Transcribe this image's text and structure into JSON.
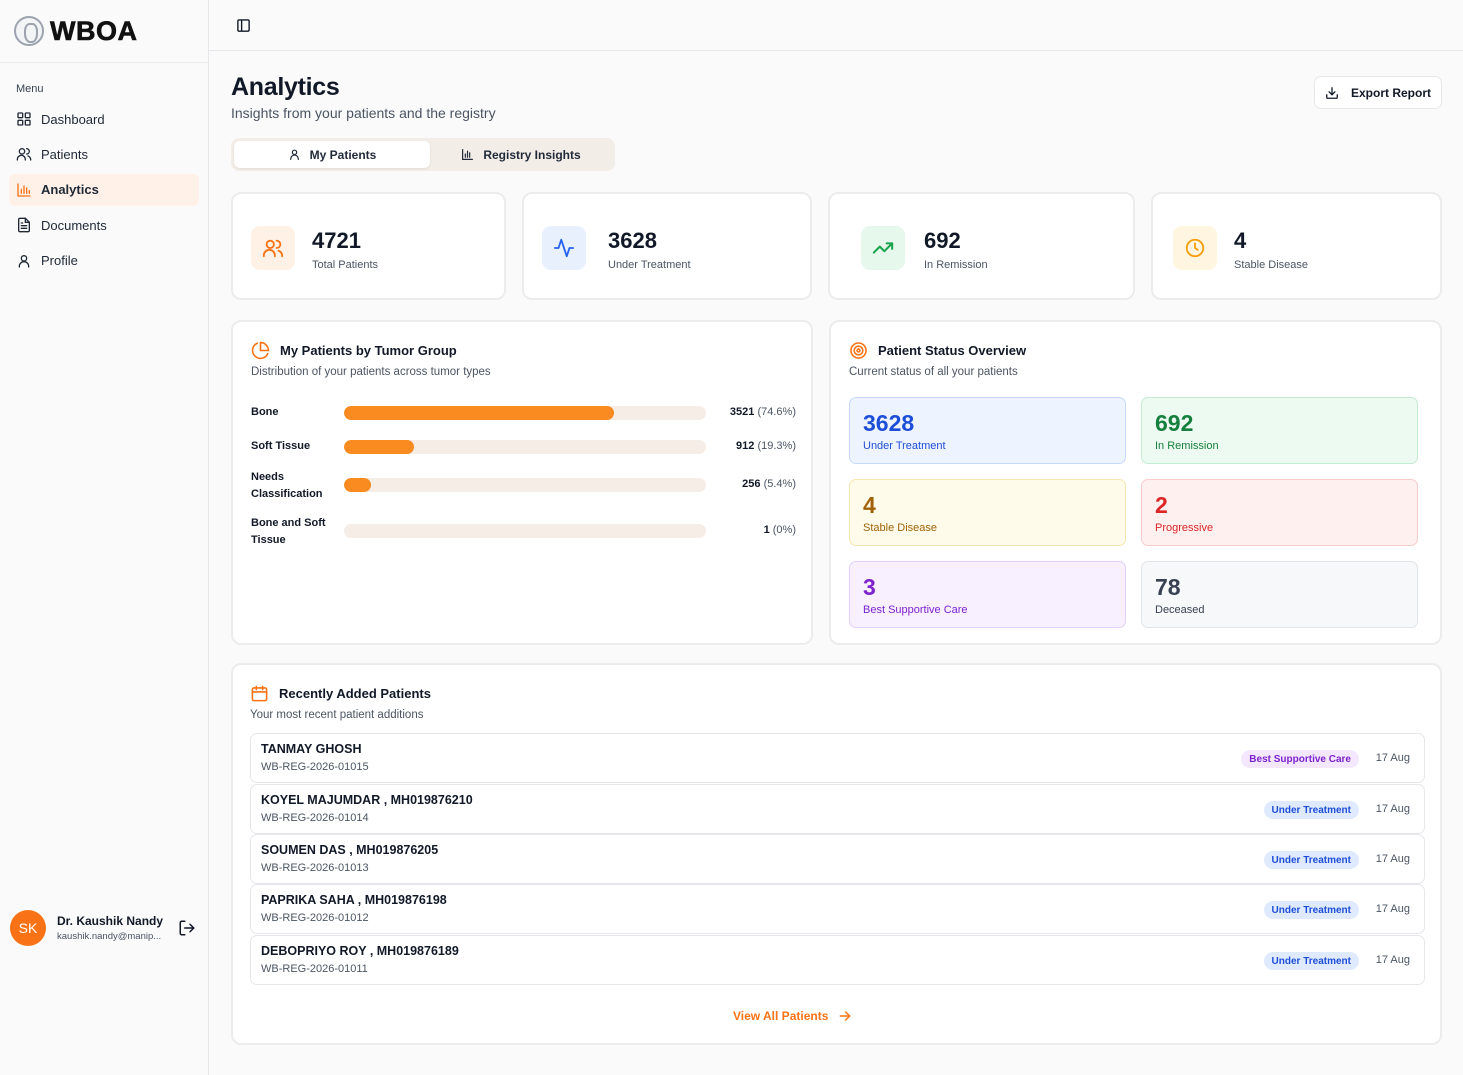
{
  "app": {
    "logo_text": "WBOA"
  },
  "sidebar": {
    "menu_title": "Menu",
    "items": [
      {
        "label": "Dashboard",
        "icon": "grid-icon"
      },
      {
        "label": "Patients",
        "icon": "users-icon"
      },
      {
        "label": "Analytics",
        "icon": "bar-chart-icon",
        "active": true
      },
      {
        "label": "Documents",
        "icon": "document-icon"
      },
      {
        "label": "Profile",
        "icon": "user-icon"
      }
    ],
    "user": {
      "initials": "SK",
      "name": "Dr. Kaushik Nandy",
      "email": "kaushik.nandy@manip..."
    }
  },
  "header": {
    "title": "Analytics",
    "subtitle": "Insights from your patients and the registry",
    "export_label": "Export Report"
  },
  "tabs": [
    {
      "label": "My Patients",
      "active": true
    },
    {
      "label": "Registry Insights",
      "active": false
    }
  ],
  "stats": [
    {
      "value": "4721",
      "label": "Total Patients",
      "icon": "users-icon",
      "color": "#f97316",
      "bg": "#fff1e6"
    },
    {
      "value": "3628",
      "label": "Under Treatment",
      "icon": "activity-icon",
      "color": "#2563eb",
      "bg": "#e8f0fe"
    },
    {
      "value": "692",
      "label": "In Remission",
      "icon": "trending-up-icon",
      "color": "#16a34a",
      "bg": "#e6f7ec"
    },
    {
      "value": "4",
      "label": "Stable Disease",
      "icon": "clock-icon",
      "color": "#f59e0b",
      "bg": "#fff5e0"
    }
  ],
  "tumor_groups": {
    "title": "My Patients by Tumor Group",
    "subtitle": "Distribution of your patients across tumor types",
    "rows": [
      {
        "label": "Bone",
        "count": "3521",
        "pct": "(74.6%)",
        "value": 74.6
      },
      {
        "label": "Soft Tissue",
        "count": "912",
        "pct": "(19.3%)",
        "value": 19.3
      },
      {
        "label": "Needs Classification",
        "count": "256",
        "pct": "(5.4%)",
        "value": 5.4
      },
      {
        "label": "Bone and Soft Tissue",
        "count": "1",
        "pct": "(0%)",
        "value": 0
      }
    ]
  },
  "status_overview": {
    "title": "Patient Status Overview",
    "subtitle": "Current status of all your patients",
    "items": [
      {
        "value": "3628",
        "label": "Under Treatment",
        "color": "#1d4ed8",
        "bg": "#eef4ff",
        "border": "#c7d9fb"
      },
      {
        "value": "692",
        "label": "In Remission",
        "color": "#15803d",
        "bg": "#edfaf1",
        "border": "#c5ecd2"
      },
      {
        "value": "4",
        "label": "Stable Disease",
        "color": "#a16207",
        "bg": "#fffbea",
        "border": "#f6e6ad"
      },
      {
        "value": "2",
        "label": "Progressive",
        "color": "#dc2626",
        "bg": "#fff0f0",
        "border": "#f9caca"
      },
      {
        "value": "3",
        "label": "Best Supportive Care",
        "color": "#7e22ce",
        "bg": "#f8f0ff",
        "border": "#e4cff8"
      },
      {
        "value": "78",
        "label": "Deceased",
        "color": "#374151",
        "bg": "#f7f8fa",
        "border": "#e1e4e8"
      }
    ]
  },
  "recent": {
    "title": "Recently Added Patients",
    "subtitle": "Your most recent patient additions",
    "patients": [
      {
        "name": "TANMAY GHOSH",
        "reg": "WB-REG-2026-01015",
        "status": "Best Supportive Care",
        "date": "17 Aug",
        "badge_color": "#7e22ce",
        "badge_bg": "#f3e8ff"
      },
      {
        "name": "KOYEL MAJUMDAR , MH019876210",
        "reg": "WB-REG-2026-01014",
        "status": "Under Treatment",
        "date": "17 Aug",
        "badge_color": "#1d4ed8",
        "badge_bg": "#e0eaff"
      },
      {
        "name": "SOUMEN DAS , MH019876205",
        "reg": "WB-REG-2026-01013",
        "status": "Under Treatment",
        "date": "17 Aug",
        "badge_color": "#1d4ed8",
        "badge_bg": "#e0eaff"
      },
      {
        "name": "PAPRIKA SAHA , MH019876198",
        "reg": "WB-REG-2026-01012",
        "status": "Under Treatment",
        "date": "17 Aug",
        "badge_color": "#1d4ed8",
        "badge_bg": "#e0eaff"
      },
      {
        "name": "DEBOPRIYO ROY  , MH019876189",
        "reg": "WB-REG-2026-01011",
        "status": "Under Treatment",
        "date": "17 Aug",
        "badge_color": "#1d4ed8",
        "badge_bg": "#e0eaff"
      }
    ],
    "view_all_label": "View All Patients"
  }
}
